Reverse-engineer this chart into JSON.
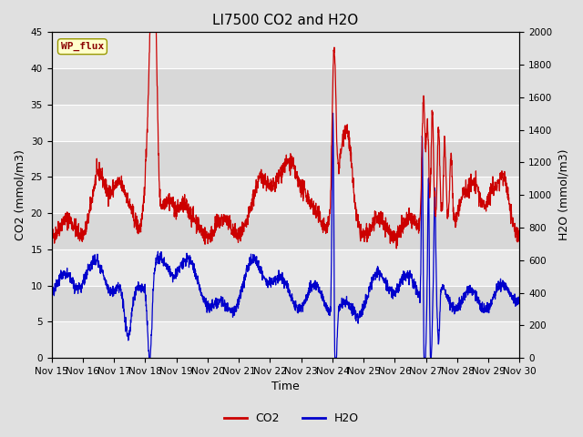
{
  "title": "LI7500 CO2 and H2O",
  "xlabel": "Time",
  "ylabel_left": "CO2 (mmol/m3)",
  "ylabel_right": "H2O (mmol/m3)",
  "ylim_left": [
    0,
    45
  ],
  "ylim_right": [
    0,
    2000
  ],
  "yticks_left": [
    0,
    5,
    10,
    15,
    20,
    25,
    30,
    35,
    40,
    45
  ],
  "yticks_right": [
    0,
    200,
    400,
    600,
    800,
    1000,
    1200,
    1400,
    1600,
    1800,
    2000
  ],
  "co2_color": "#cc0000",
  "h2o_color": "#0000cc",
  "background_color": "#e0e0e0",
  "plot_bg_color": "#f2f2f2",
  "band_colors": [
    "#dcdcdc",
    "#ebebeb"
  ],
  "annotation_text": "WP_flux",
  "annotation_bg": "#ffffcc",
  "annotation_border": "#999900",
  "legend_co2": "CO2",
  "legend_h2o": "H2O",
  "title_fontsize": 11,
  "axis_label_fontsize": 9,
  "tick_fontsize": 7.5,
  "linewidth": 0.9,
  "seed": 42,
  "n_days": 15,
  "pts_per_day": 144
}
